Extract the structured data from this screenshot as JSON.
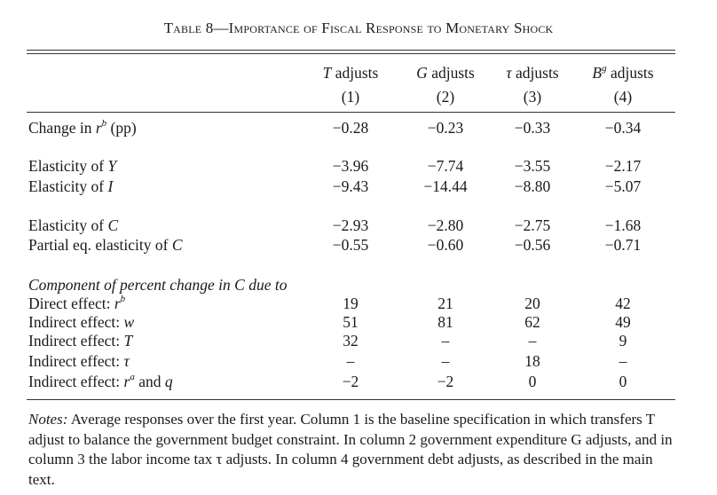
{
  "table": {
    "title_prefix": "Table 8—",
    "title_rest": "Importance of Fiscal Response to Monetary Shock",
    "columns": [
      {
        "head_var": "T",
        "head_rest": " adjusts",
        "num": "(1)"
      },
      {
        "head_var": "G",
        "head_rest": " adjusts",
        "num": "(2)"
      },
      {
        "head_var": "τ",
        "head_rest": " adjusts",
        "num": "(3)"
      },
      {
        "head_var": "B",
        "head_sup": "g",
        "head_rest": " adjusts",
        "num": "(4)"
      }
    ],
    "rows": {
      "change_rb": {
        "label_a": "Change in ",
        "label_var": "r",
        "label_sup": "b",
        "label_b": " (pp)",
        "values": [
          "−0.28",
          "−0.23",
          "−0.33",
          "−0.34"
        ]
      },
      "elast_y": {
        "label_a": "Elasticity of ",
        "label_var": "Y",
        "values": [
          "−3.96",
          "−7.74",
          "−3.55",
          "−2.17"
        ]
      },
      "elast_i": {
        "label_a": "Elasticity of ",
        "label_var": "I",
        "values": [
          "−9.43",
          "−14.44",
          "−8.80",
          "−5.07"
        ]
      },
      "elast_c": {
        "label_a": "Elasticity of ",
        "label_var": "C",
        "values": [
          "−2.93",
          "−2.80",
          "−2.75",
          "−1.68"
        ]
      },
      "partial_c": {
        "label_a": "Partial eq. elasticity of ",
        "label_var": "C",
        "values": [
          "−0.55",
          "−0.60",
          "−0.56",
          "−0.71"
        ]
      },
      "component_heading": "Component of percent change in C due to",
      "direct": {
        "label_a": "Direct effect: ",
        "label_var": "r",
        "label_sup": "b",
        "values": [
          "19",
          "21",
          "20",
          "42"
        ]
      },
      "indirect_w": {
        "label_a": "Indirect effect: ",
        "label_var": "w",
        "values": [
          "51",
          "81",
          "62",
          "49"
        ]
      },
      "indirect_t": {
        "label_a": "Indirect effect: ",
        "label_var": "T",
        "values": [
          "32",
          "–",
          "–",
          "9"
        ]
      },
      "indirect_tau": {
        "label_a": "Indirect effect: ",
        "label_var": "τ",
        "values": [
          "–",
          "–",
          "18",
          "–"
        ]
      },
      "indirect_ra_q": {
        "label_a": "Indirect effect: ",
        "label_var": "r",
        "label_sup": "a",
        "label_b": " and ",
        "label_var2": "q",
        "values": [
          "−2",
          "−2",
          "0",
          "0"
        ]
      }
    },
    "notes_lead": "Notes:",
    "notes_text": " Average responses over the first year. Column 1 is the baseline specification in which transfers T adjust to balance the government budget constraint. In column 2 government expenditure G adjusts, and in column 3 the labor income tax τ adjusts. In column 4 government debt adjusts, as described in the main text."
  }
}
